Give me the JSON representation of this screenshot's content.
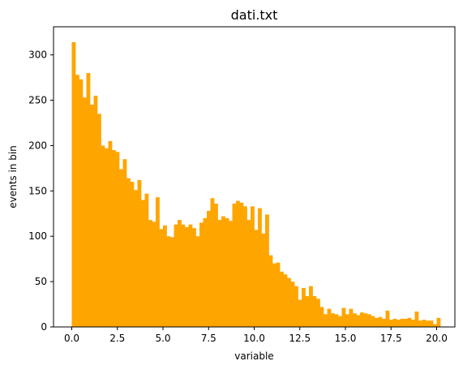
{
  "chart_data": {
    "type": "bar",
    "title": "dati.txt",
    "xlabel": "variable",
    "ylabel": "events in bin",
    "xlim": [
      -1.0,
      21.0
    ],
    "ylim": [
      0,
      331
    ],
    "grid": false,
    "legend": "none",
    "bar_color": "#ffa500",
    "bin_start": 0.0,
    "bin_width": 0.2,
    "x_ticks": [
      "0.0",
      "2.5",
      "5.0",
      "7.5",
      "10.0",
      "12.5",
      "15.0",
      "17.5",
      "20.0"
    ],
    "y_ticks": [
      "0",
      "50",
      "100",
      "150",
      "200",
      "250",
      "300"
    ],
    "values": [
      314,
      278,
      273,
      253,
      280,
      245,
      255,
      235,
      200,
      197,
      205,
      195,
      193,
      174,
      185,
      164,
      160,
      151,
      162,
      140,
      147,
      118,
      116,
      143,
      108,
      112,
      100,
      99,
      113,
      118,
      113,
      110,
      113,
      109,
      100,
      115,
      120,
      128,
      142,
      136,
      118,
      122,
      120,
      117,
      136,
      139,
      137,
      133,
      118,
      133,
      107,
      131,
      103,
      124,
      79,
      70,
      71,
      61,
      58,
      54,
      50,
      45,
      30,
      43,
      34,
      45,
      34,
      31,
      22,
      14,
      20,
      15,
      14,
      12,
      21,
      14,
      20,
      15,
      13,
      16,
      15,
      14,
      12,
      10,
      11,
      9,
      18,
      8,
      9,
      8,
      9,
      9,
      10,
      8,
      17,
      7,
      8,
      7,
      7,
      3,
      10
    ]
  }
}
